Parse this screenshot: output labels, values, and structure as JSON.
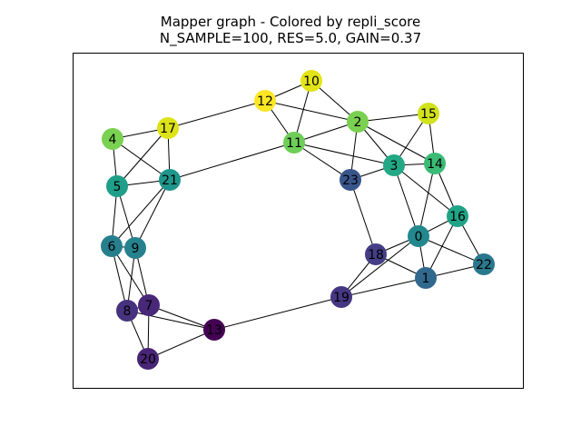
{
  "title": {
    "line1": "Mapper graph - Colored by repli_score",
    "line2": "N_SAMPLE=100, RES=5.0, GAIN=0.37"
  },
  "graph": {
    "nodes": [
      {
        "id": "10",
        "color": "#e3e418"
      },
      {
        "id": "12",
        "color": "#fde725"
      },
      {
        "id": "2",
        "color": "#7ad151"
      },
      {
        "id": "15",
        "color": "#d2e21b"
      },
      {
        "id": "17",
        "color": "#dde318"
      },
      {
        "id": "4",
        "color": "#7ad151"
      },
      {
        "id": "11",
        "color": "#6ece58"
      },
      {
        "id": "3",
        "color": "#22a884"
      },
      {
        "id": "14",
        "color": "#3bbb75"
      },
      {
        "id": "5",
        "color": "#1f9e89"
      },
      {
        "id": "21",
        "color": "#1f968b"
      },
      {
        "id": "23",
        "color": "#39568c"
      },
      {
        "id": "16",
        "color": "#20a386"
      },
      {
        "id": "0",
        "color": "#23888e"
      },
      {
        "id": "6",
        "color": "#277f8e"
      },
      {
        "id": "9",
        "color": "#26828e"
      },
      {
        "id": "18",
        "color": "#433e85"
      },
      {
        "id": "22",
        "color": "#2a788e"
      },
      {
        "id": "1",
        "color": "#31688e"
      },
      {
        "id": "19",
        "color": "#453781"
      },
      {
        "id": "7",
        "color": "#482878"
      },
      {
        "id": "8",
        "color": "#46327e"
      },
      {
        "id": "13",
        "color": "#440154"
      },
      {
        "id": "20",
        "color": "#482576"
      }
    ],
    "edges": [
      [
        "10",
        "12"
      ],
      [
        "10",
        "11"
      ],
      [
        "10",
        "2"
      ],
      [
        "12",
        "17"
      ],
      [
        "12",
        "11"
      ],
      [
        "12",
        "2"
      ],
      [
        "2",
        "11"
      ],
      [
        "2",
        "15"
      ],
      [
        "2",
        "3"
      ],
      [
        "2",
        "23"
      ],
      [
        "2",
        "14"
      ],
      [
        "15",
        "3"
      ],
      [
        "15",
        "14"
      ],
      [
        "17",
        "4"
      ],
      [
        "17",
        "5"
      ],
      [
        "17",
        "21"
      ],
      [
        "4",
        "21"
      ],
      [
        "4",
        "5"
      ],
      [
        "11",
        "21"
      ],
      [
        "11",
        "23"
      ],
      [
        "11",
        "3"
      ],
      [
        "3",
        "14"
      ],
      [
        "3",
        "16"
      ],
      [
        "3",
        "0"
      ],
      [
        "3",
        "23"
      ],
      [
        "14",
        "16"
      ],
      [
        "14",
        "0"
      ],
      [
        "5",
        "6"
      ],
      [
        "5",
        "9"
      ],
      [
        "5",
        "21"
      ],
      [
        "21",
        "6"
      ],
      [
        "21",
        "9"
      ],
      [
        "23",
        "18"
      ],
      [
        "16",
        "0"
      ],
      [
        "16",
        "22"
      ],
      [
        "16",
        "1"
      ],
      [
        "0",
        "18"
      ],
      [
        "0",
        "19"
      ],
      [
        "0",
        "22"
      ],
      [
        "0",
        "1"
      ],
      [
        "18",
        "19"
      ],
      [
        "18",
        "1"
      ],
      [
        "1",
        "22"
      ],
      [
        "1",
        "19"
      ],
      [
        "6",
        "9"
      ],
      [
        "6",
        "7"
      ],
      [
        "6",
        "8"
      ],
      [
        "9",
        "8"
      ],
      [
        "9",
        "7"
      ],
      [
        "7",
        "8"
      ],
      [
        "7",
        "13"
      ],
      [
        "7",
        "20"
      ],
      [
        "8",
        "13"
      ],
      [
        "8",
        "20"
      ],
      [
        "13",
        "20"
      ],
      [
        "13",
        "19"
      ]
    ]
  }
}
